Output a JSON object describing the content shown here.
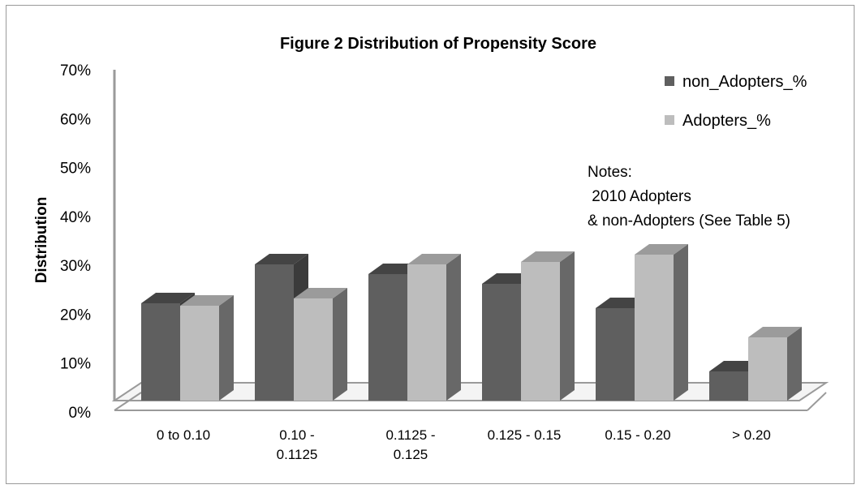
{
  "chart_data": {
    "type": "bar",
    "title": "Figure 2 Distribution of Propensity Score",
    "ylabel": "Distribution",
    "xlabel": "",
    "ylim": [
      0,
      70
    ],
    "y_ticks": [
      "0%",
      "10%",
      "20%",
      "30%",
      "40%",
      "50%",
      "60%",
      "70%"
    ],
    "categories": [
      [
        "0 to 0.10"
      ],
      [
        "0.10 -",
        "0.1125"
      ],
      [
        "0.1125 -",
        "0.125"
      ],
      [
        "0.125 - 0.15"
      ],
      [
        "0.15 - 0.20"
      ],
      [
        "> 0.20"
      ]
    ],
    "series": [
      {
        "name": "non_Adopters_%",
        "color": "#5f5f5f",
        "values": [
          20,
          28,
          26,
          24,
          19,
          6
        ]
      },
      {
        "name": "Adopters_%",
        "color": "#bdbdbd",
        "values": [
          19.5,
          21,
          28,
          28.5,
          30,
          13
        ]
      }
    ],
    "legend_position": "top-right",
    "notes": [
      "Notes:",
      " 2010 Adopters",
      "& non-Adopters (See Table 5)"
    ],
    "grid": false,
    "style": "3d-clustered-column"
  }
}
